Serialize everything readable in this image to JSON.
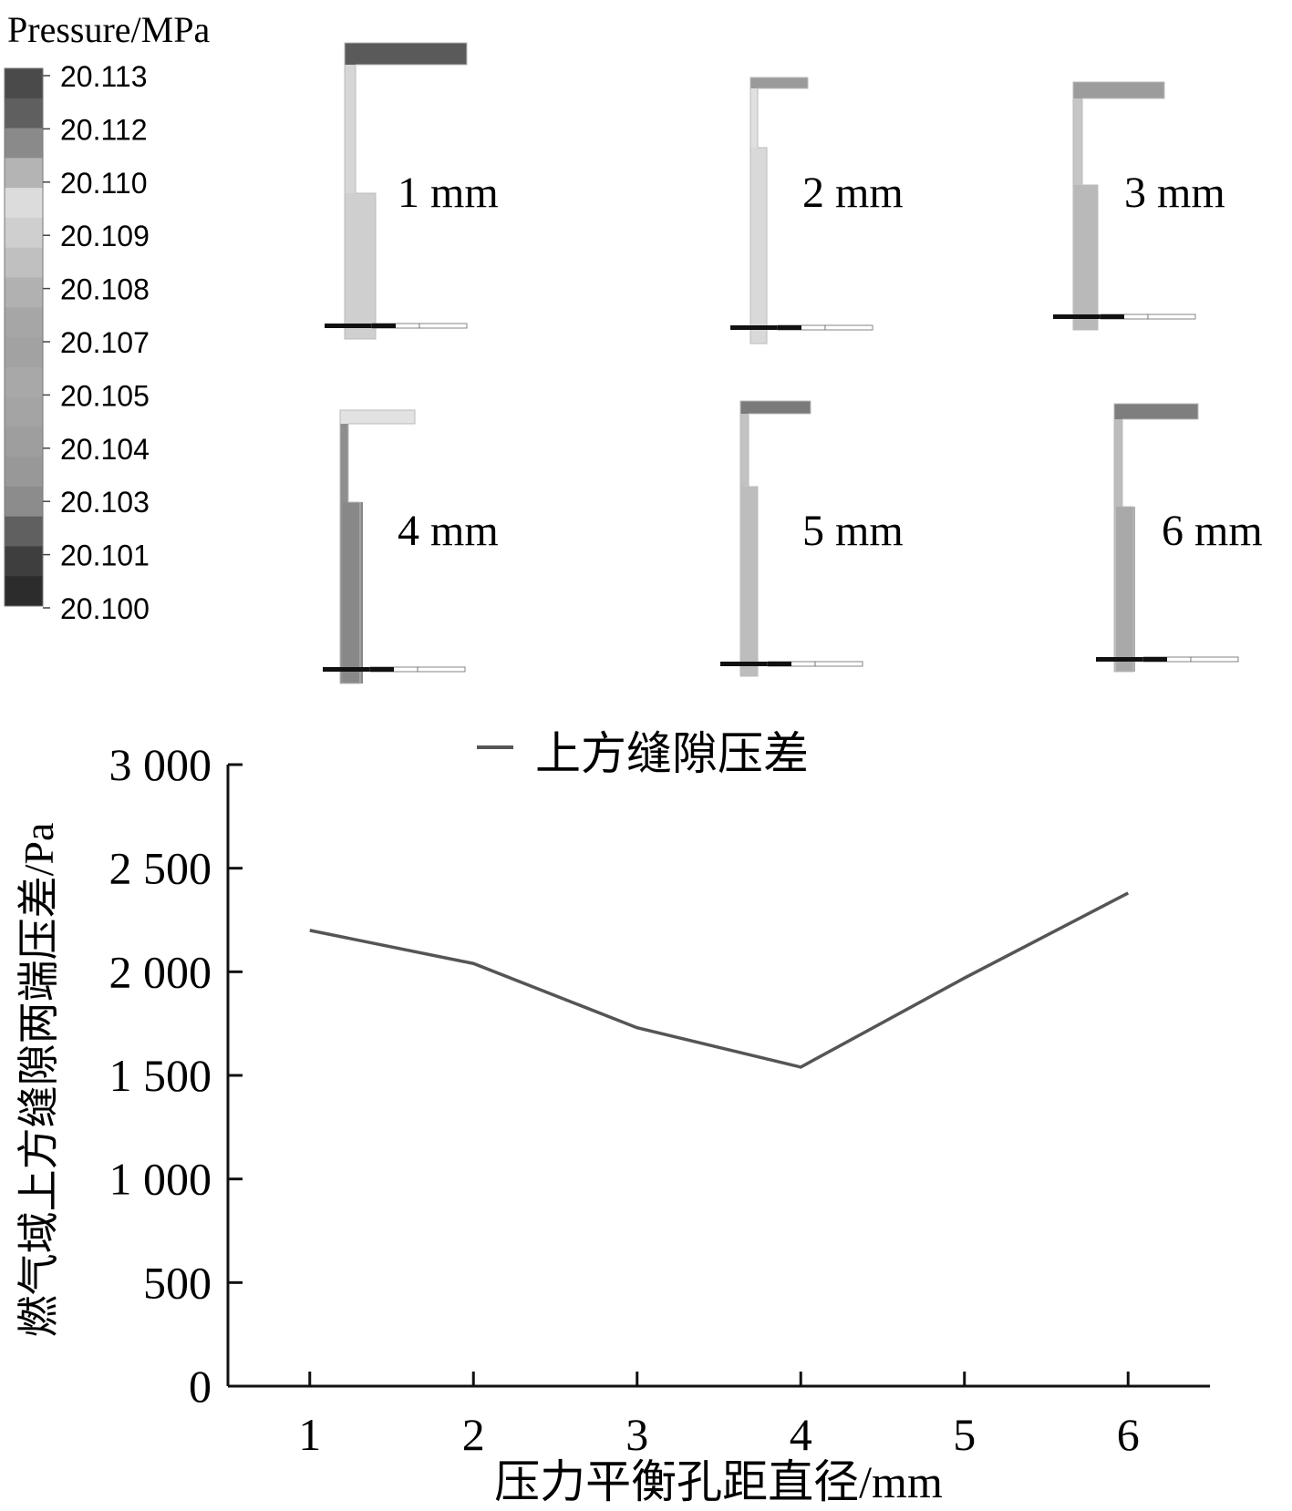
{
  "legend_panel": {
    "title": "Pressure/MPa",
    "levels": [
      "20.113",
      "20.112",
      "20.110",
      "20.109",
      "20.108",
      "20.107",
      "20.105",
      "20.104",
      "20.103",
      "20.101",
      "20.100"
    ],
    "band_colors": [
      "#4a4a4a",
      "#5f5f5f",
      "#8a8a8a",
      "#b4b4b4",
      "#dcdcdc",
      "#cfcfcf",
      "#c0c0c0",
      "#b1b1b1",
      "#a6a6a6",
      "#a2a2a2",
      "#a8a8a8",
      "#a4a4a4",
      "#9e9e9e",
      "#989898",
      "#8c8c8c",
      "#606060",
      "#3e3e3e",
      "#2c2c2c"
    ]
  },
  "contour_panels": [
    {
      "label": "1 mm",
      "top_color": "#5a5a5a",
      "stem_color": "#d6d6d6",
      "body_color": "#cfcfcf"
    },
    {
      "label": "2 mm",
      "top_color": "#9a9a9a",
      "stem_color": "#e0e0e0",
      "body_color": "#d9d9d9"
    },
    {
      "label": "3 mm",
      "top_color": "#9c9c9c",
      "stem_color": "#c6c6c6",
      "body_color": "#b9b9b9"
    },
    {
      "label": "4 mm",
      "top_color": "#e2e2e2",
      "stem_color": "#8e8e8e",
      "body_color": "#888888"
    },
    {
      "label": "5 mm",
      "top_color": "#7a7a7a",
      "stem_color": "#c2c2c2",
      "body_color": "#bdbdbd"
    },
    {
      "label": "6 mm",
      "top_color": "#7e7e7e",
      "stem_color": "#bcbcbc",
      "body_color": "#a9a9a9"
    }
  ],
  "chart_data": {
    "type": "line",
    "x": [
      1,
      2,
      3,
      4,
      5,
      6
    ],
    "series": [
      {
        "name": "上方缝隙压差",
        "values": [
          2200,
          2040,
          1730,
          1540,
          1970,
          2380
        ],
        "color": "#555555"
      }
    ],
    "xlabel": "压力平衡孔距直径/mm",
    "ylabel": "燃气域上方缝隙两端压差/Pa",
    "xticks": [
      "1",
      "2",
      "3",
      "4",
      "5",
      "6"
    ],
    "yticks": [
      {
        "value": 0,
        "label": "0"
      },
      {
        "value": 500,
        "label": "500"
      },
      {
        "value": 1000,
        "label": "1 000"
      },
      {
        "value": 1500,
        "label": "1 500"
      },
      {
        "value": 2000,
        "label": "2 000"
      },
      {
        "value": 2500,
        "label": "2 500"
      },
      {
        "value": 3000,
        "label": "3 000"
      }
    ],
    "xlim": [
      0.5,
      6.5
    ],
    "ylim": [
      0,
      3000
    ],
    "legend_position": "top-center",
    "grid": false
  }
}
